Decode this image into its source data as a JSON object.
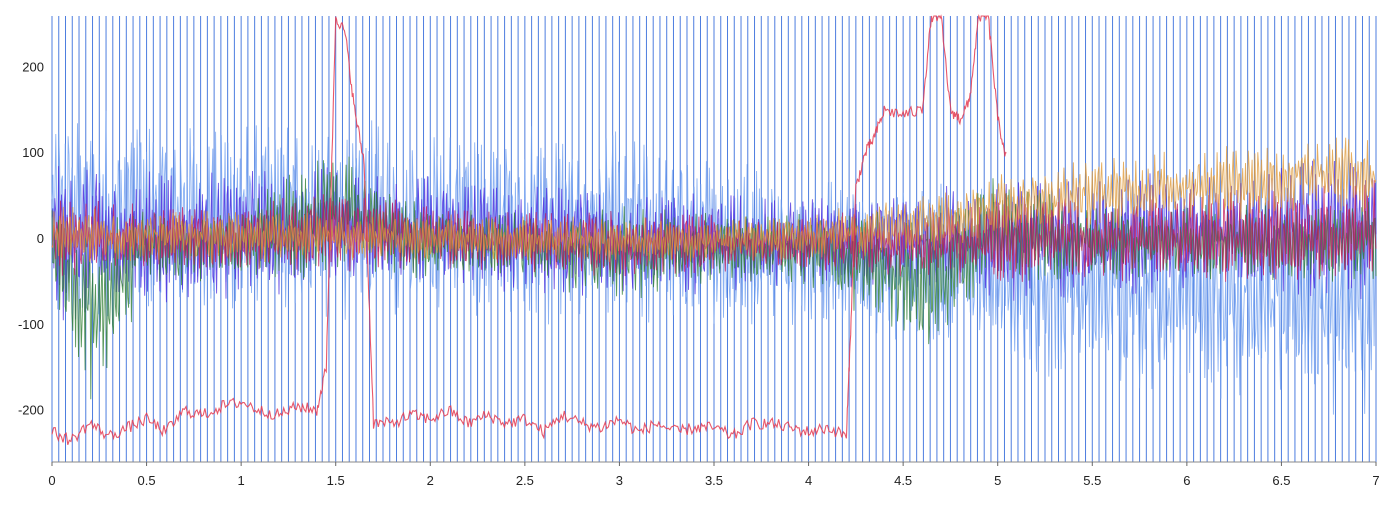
{
  "chart_data": {
    "type": "line",
    "title": "",
    "xlabel": "",
    "ylabel": "",
    "xlim": [
      0,
      7
    ],
    "ylim": [
      -260,
      260
    ],
    "x_ticks": [
      "0",
      "0.5",
      "1",
      "1.5",
      "2",
      "2.5",
      "3",
      "3.5",
      "4",
      "4.5",
      "5",
      "5.5",
      "6",
      "6.5",
      "7"
    ],
    "x_tick_values": [
      0,
      0.5,
      1,
      1.5,
      2,
      2.5,
      3,
      3.5,
      4,
      4.5,
      5,
      5.5,
      6,
      6.5,
      7
    ],
    "y_ticks": [
      "200",
      "100",
      "0",
      "-100",
      "-200"
    ],
    "y_tick_values": [
      200,
      100,
      0,
      -100,
      -200
    ],
    "grid": {
      "vertical": true,
      "horizontal": false
    },
    "legend": "none",
    "colors": {
      "vertical_grid": "#3a6fdc",
      "light_blue": "#6f9ff0",
      "dark_blue": "#1f4fa8",
      "violet": "#4a2be0",
      "purple": "#7b3fc4",
      "green": "#2e7d32",
      "crimson": "#c2185b",
      "red": "#d32f2f",
      "orange": "#e09a3a",
      "pink_red": "#e53950"
    },
    "series": [
      {
        "color": "#6f9ff0",
        "envelope_x": [
          0,
          0.5,
          1,
          1.5,
          2,
          2.5,
          3,
          3.5,
          4,
          4.2,
          4.5,
          4.9,
          5,
          5.5,
          6,
          6.5,
          7
        ],
        "envelope_upper": [
          165,
          150,
          140,
          145,
          135,
          140,
          130,
          100,
          80,
          70,
          65,
          75,
          60,
          55,
          60,
          70,
          60
        ],
        "envelope_lower": [
          -110,
          -100,
          -95,
          -100,
          -95,
          -100,
          -110,
          -105,
          -100,
          -110,
          -120,
          -140,
          -160,
          -175,
          -185,
          -200,
          -225
        ]
      },
      {
        "color": "#4a2be0",
        "envelope_x": [
          0,
          0.5,
          1,
          1.5,
          2,
          2.5,
          3,
          3.5,
          4,
          4.5,
          5,
          5.5,
          6,
          6.5,
          7
        ],
        "envelope_upper": [
          95,
          85,
          80,
          95,
          75,
          70,
          60,
          55,
          50,
          60,
          70,
          75,
          80,
          90,
          100
        ],
        "envelope_lower": [
          -100,
          -85,
          -70,
          -65,
          -60,
          -65,
          -70,
          -65,
          -60,
          -65,
          -80,
          -75,
          -70,
          -75,
          -80
        ]
      },
      {
        "color": "#2e7d32",
        "envelope_x": [
          0,
          0.1,
          0.2,
          0.3,
          0.5,
          1,
          1.5,
          2,
          2.5,
          3,
          3.5,
          4,
          4.5,
          4.6,
          5,
          5.5,
          6,
          6.5,
          7
        ],
        "envelope_upper": [
          60,
          50,
          45,
          40,
          45,
          40,
          120,
          40,
          35,
          40,
          30,
          30,
          40,
          30,
          90,
          40,
          40,
          45,
          50
        ],
        "envelope_lower": [
          -80,
          -150,
          -190,
          -170,
          -60,
          -50,
          -50,
          -45,
          -50,
          -80,
          -50,
          -55,
          -120,
          -145,
          -60,
          -50,
          -50,
          -50,
          -55
        ]
      },
      {
        "color": "#c2185b",
        "envelope_x": [
          0,
          0.5,
          1,
          1.5,
          2,
          2.5,
          3,
          3.5,
          4,
          4.5,
          5,
          5.5,
          6,
          6.5,
          7
        ],
        "envelope_upper": [
          50,
          45,
          40,
          60,
          40,
          35,
          35,
          30,
          30,
          35,
          60,
          50,
          55,
          60,
          70
        ],
        "envelope_lower": [
          -45,
          -40,
          -40,
          -40,
          -35,
          -40,
          -45,
          -40,
          -40,
          -45,
          -60,
          -50,
          -50,
          -50,
          -55
        ]
      },
      {
        "color": "#e09a3a",
        "envelope_x": [
          0,
          1,
          2,
          3,
          4,
          4.5,
          4.8,
          5,
          5.5,
          6,
          6.5,
          7
        ],
        "envelope_upper": [
          40,
          35,
          30,
          25,
          30,
          50,
          70,
          80,
          95,
          105,
          115,
          125
        ],
        "envelope_lower": [
          -30,
          -30,
          -25,
          -30,
          -25,
          -20,
          -10,
          0,
          10,
          20,
          25,
          30
        ]
      },
      {
        "color": "#e53950",
        "points_x": [
          0,
          0.1,
          0.2,
          0.3,
          0.4,
          0.5,
          0.6,
          0.7,
          0.8,
          0.9,
          1.0,
          1.1,
          1.2,
          1.3,
          1.4,
          1.45,
          1.5,
          1.55,
          1.6,
          1.65,
          1.7,
          1.8,
          1.9,
          2.0,
          2.1,
          2.2,
          2.3,
          2.4,
          2.5,
          2.6,
          2.7,
          2.8,
          2.9,
          3.0,
          3.1,
          3.2,
          3.3,
          3.4,
          3.5,
          3.6,
          3.7,
          3.8,
          3.9,
          4.0,
          4.1,
          4.2,
          4.22,
          4.25,
          4.3,
          4.35,
          4.4,
          4.5,
          4.6,
          4.65,
          4.7,
          4.75,
          4.8,
          4.85,
          4.9,
          4.95,
          5.0,
          5.05
        ],
        "points_y": [
          -225,
          -235,
          -215,
          -230,
          -220,
          -210,
          -225,
          -200,
          -205,
          -195,
          -190,
          -200,
          -205,
          -195,
          -200,
          -150,
          260,
          240,
          150,
          90,
          -215,
          -215,
          -205,
          -210,
          -200,
          -215,
          -205,
          -215,
          -210,
          -225,
          -205,
          -215,
          -220,
          -210,
          -225,
          -215,
          -225,
          -220,
          -220,
          -230,
          -215,
          -215,
          -220,
          -225,
          -220,
          -230,
          -120,
          60,
          100,
          120,
          150,
          145,
          150,
          260,
          260,
          150,
          140,
          160,
          260,
          260,
          140,
          90
        ]
      }
    ]
  }
}
